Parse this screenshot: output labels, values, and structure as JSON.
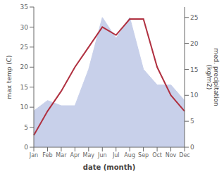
{
  "chart_data": {
    "type": "line",
    "xlabel": "date (month)",
    "ylabel": "max temp (C)",
    "y2label": "med. precipitation\n(kg/m2)",
    "categories": [
      "Jan",
      "Feb",
      "Mar",
      "Apr",
      "May",
      "Jun",
      "Jul",
      "Aug",
      "Sep",
      "Oct",
      "Nov",
      "Dec"
    ],
    "series": [
      {
        "type": "area",
        "axis": "y2",
        "color": "#c8d0ea",
        "values": [
          7,
          9,
          8,
          8,
          15,
          25,
          21,
          25,
          15,
          12,
          12,
          9
        ]
      },
      {
        "type": "line",
        "axis": "y",
        "color": "#b03040",
        "values": [
          3.0,
          9.0,
          14.0,
          20.0,
          25.0,
          30.0,
          28.0,
          32.0,
          32.0,
          20.0,
          13.0,
          9.0
        ]
      }
    ],
    "ylim": [
      0,
      35
    ],
    "yticks": [
      0,
      5,
      10,
      15,
      20,
      25,
      30,
      35
    ],
    "y2lim": [
      0,
      27
    ],
    "y2ticks": [
      0,
      5,
      10,
      15,
      20,
      25
    ],
    "grid": false
  }
}
